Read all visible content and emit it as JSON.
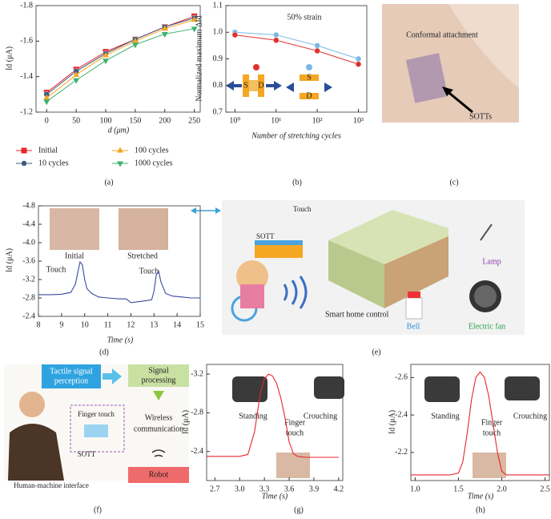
{
  "chart_data": [
    {
      "type": "line",
      "xlabel": "d (μm)",
      "ylabel": "Id (μA)",
      "x": [
        0,
        50,
        100,
        150,
        200,
        250
      ],
      "xlim": [
        -18,
        260
      ],
      "xticks": [
        0,
        50,
        100,
        150,
        200,
        250
      ],
      "ylim": [
        -1.2,
        -1.8
      ],
      "yticks": [
        -1.8,
        -1.6,
        -1.4,
        -1.2
      ],
      "legend": "bottom",
      "series": [
        {
          "name": "Initial",
          "color": "#e8262b",
          "marker": "square",
          "values": [
            -1.31,
            -1.44,
            -1.54,
            -1.61,
            -1.68,
            -1.74
          ]
        },
        {
          "name": "10 cycles",
          "color": "#3d5a80",
          "marker": "circle",
          "values": [
            -1.3,
            -1.43,
            -1.53,
            -1.61,
            -1.68,
            -1.73
          ]
        },
        {
          "name": "100 cycles",
          "color": "#f5a623",
          "marker": "triangle-up",
          "values": [
            -1.28,
            -1.41,
            -1.52,
            -1.6,
            -1.67,
            -1.72
          ]
        },
        {
          "name": "1000 cycles",
          "color": "#3cb371",
          "marker": "triangle-down",
          "values": [
            -1.26,
            -1.38,
            -1.49,
            -1.58,
            -1.64,
            -1.67
          ]
        }
      ]
    },
    {
      "type": "line",
      "xlabel": "Number of stretching cycles",
      "ylabel": "Normalized maximum ΔId",
      "x": [
        1,
        10,
        100,
        1000
      ],
      "xscale": "log",
      "xlim": [
        0.6,
        1600
      ],
      "xticks": [
        {
          "value": 1,
          "label": "10⁰"
        },
        {
          "value": 10,
          "label": "10¹"
        },
        {
          "value": 100,
          "label": "10²"
        },
        {
          "value": 1000,
          "label": "10³"
        }
      ],
      "ylim": [
        0.7,
        1.1
      ],
      "yticks": [
        0.7,
        0.8,
        0.9,
        {
          "value": 1,
          "label": "1.0"
        },
        1.1
      ],
      "annotations": [
        "50% strain",
        "S",
        "D",
        "S",
        "D"
      ],
      "series": [
        {
          "color": "#7ab8e6",
          "marker": "circle",
          "values": [
            1.0,
            0.99,
            0.95,
            0.9
          ]
        },
        {
          "color": "#e03030",
          "marker": "circle",
          "values": [
            0.99,
            0.97,
            0.93,
            0.88
          ]
        }
      ]
    },
    {
      "type": "line",
      "xlabel": "Time (s)",
      "ylabel": "Id (μA)",
      "x": [
        8,
        8.5,
        9,
        9.4,
        9.6,
        9.7,
        9.8,
        9.9,
        10.0,
        10.1,
        10.3,
        10.6,
        11,
        11.5,
        11.8,
        12,
        12.5,
        12.9,
        13.0,
        13.1,
        13.2,
        13.3,
        13.5,
        13.8,
        14.2,
        14.6,
        15
      ],
      "xlim": [
        8,
        15
      ],
      "xticks": [
        8,
        9,
        10,
        11,
        12,
        13,
        14,
        15
      ],
      "ylim": [
        -2.4,
        -4.8
      ],
      "yticks": [
        -4.8,
        -4.4,
        {
          "value": -4,
          "label": "-4.0"
        },
        -3.6,
        -3.2,
        -2.8,
        -2.4
      ],
      "annotations": [
        "Initial",
        "Stretched",
        "Touch",
        "Touch"
      ],
      "series": [
        {
          "color": "#3a4aa0",
          "values": [
            -2.87,
            -2.87,
            -2.88,
            -2.92,
            -3.1,
            -3.35,
            -3.58,
            -3.52,
            -3.2,
            -3.0,
            -2.9,
            -2.82,
            -2.8,
            -2.78,
            -2.78,
            -2.7,
            -2.73,
            -2.76,
            -2.95,
            -3.3,
            -3.38,
            -3.15,
            -2.9,
            -2.84,
            -2.82,
            -2.8,
            -2.8
          ]
        }
      ]
    },
    {
      "type": "line",
      "xlabel": "Time (s)",
      "ylabel": "Id (μA)",
      "x": [
        2.6,
        2.8,
        3.0,
        3.1,
        3.18,
        3.25,
        3.3,
        3.35,
        3.4,
        3.45,
        3.5,
        3.55,
        3.6,
        3.65,
        3.7,
        3.8,
        4.0,
        4.2
      ],
      "xlim": [
        2.6,
        4.25
      ],
      "xticks": [
        2.7,
        {
          "value": 3,
          "label": "3.0"
        },
        3.3,
        3.6,
        3.9,
        4.2
      ],
      "ylim": [
        -2.1,
        -3.3
      ],
      "yticks": [
        -3.2,
        -2.8,
        -2.4
      ],
      "annotations": [
        "Standing",
        "Finger",
        "touch",
        "Crouching"
      ],
      "series": [
        {
          "color": "#e8262b",
          "values": [
            -2.35,
            -2.35,
            -2.35,
            -2.37,
            -2.6,
            -3.0,
            -3.15,
            -3.2,
            -3.18,
            -3.1,
            -2.95,
            -2.75,
            -2.5,
            -2.38,
            -2.35,
            -2.34,
            -2.34,
            -2.34
          ]
        }
      ]
    },
    {
      "type": "line",
      "xlabel": "Time (s)",
      "ylabel": "Id (μA)",
      "x": [
        0.95,
        1.2,
        1.4,
        1.5,
        1.55,
        1.6,
        1.65,
        1.7,
        1.75,
        1.8,
        1.85,
        1.9,
        1.95,
        2.0,
        2.05,
        2.2,
        2.4,
        2.55
      ],
      "xlim": [
        0.95,
        2.55
      ],
      "xticks": [
        {
          "value": 1,
          "label": "1.0"
        },
        1.5,
        {
          "value": 2,
          "label": "2.0"
        },
        2.5
      ],
      "ylim": [
        -2.05,
        -2.67
      ],
      "yticks": [
        -2.6,
        -2.4,
        -2.2
      ],
      "annotations": [
        "Standing",
        "Finger",
        "touch",
        "Crouching"
      ],
      "series": [
        {
          "color": "#e8262b",
          "values": [
            -2.08,
            -2.08,
            -2.08,
            -2.09,
            -2.15,
            -2.3,
            -2.48,
            -2.6,
            -2.63,
            -2.6,
            -2.5,
            -2.35,
            -2.2,
            -2.1,
            -2.08,
            -2.08,
            -2.08,
            -2.08
          ]
        }
      ]
    }
  ],
  "panel_labels": [
    "(a)",
    "(b)",
    "(c)",
    "(d)",
    "(e)",
    "(f)",
    "(g)",
    "(h)"
  ],
  "photo_c": [
    "Conformal attachment",
    "SOTTs"
  ],
  "illustration_e": [
    "SOTT",
    "Touch",
    "Smart home control",
    "Lamp",
    "Bell",
    "Electric fan"
  ],
  "illustration_f": [
    "Tactile signal",
    "perception",
    "Signal",
    "processing",
    "Wireless",
    "communication",
    "Robot",
    "Finger touch",
    "SOTT",
    "Human-machine interface"
  ]
}
